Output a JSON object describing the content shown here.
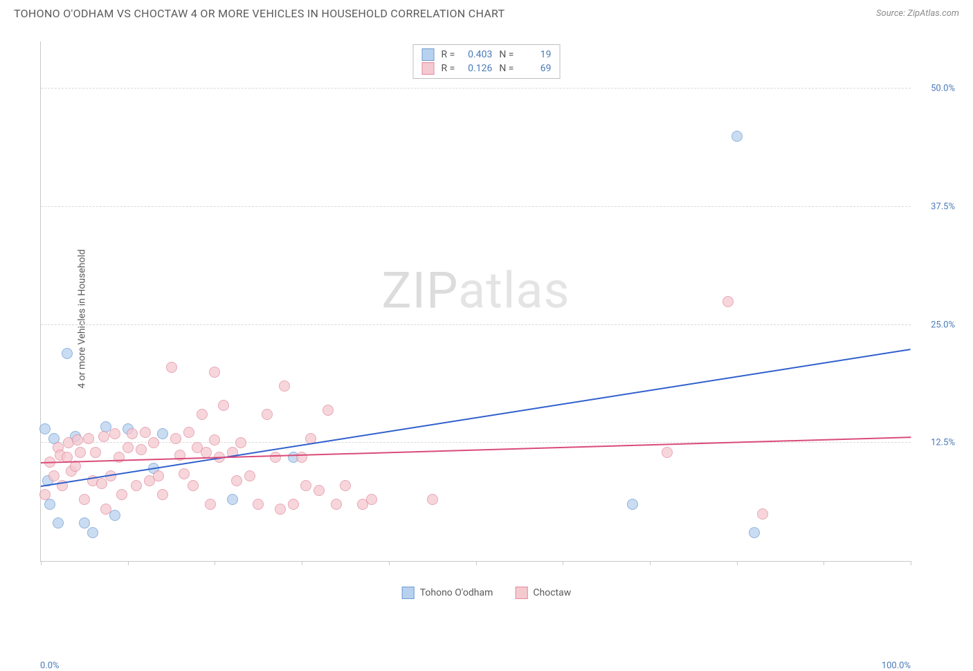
{
  "header": {
    "title": "TOHONO O'ODHAM VS CHOCTAW 4 OR MORE VEHICLES IN HOUSEHOLD CORRELATION CHART",
    "source": "Source: ZipAtlas.com"
  },
  "axes": {
    "y_label": "4 or more Vehicles in Household",
    "y_ticks": [
      {
        "value": 12.5,
        "label": "12.5%"
      },
      {
        "value": 25.0,
        "label": "25.0%"
      },
      {
        "value": 37.5,
        "label": "37.5%"
      },
      {
        "value": 50.0,
        "label": "50.0%"
      }
    ],
    "x_label_min": "0.0%",
    "x_label_max": "100.0%",
    "x_tick_positions": [
      0,
      10,
      20,
      30,
      40,
      50,
      60,
      70,
      80,
      90,
      100
    ],
    "xlim": [
      0,
      100
    ],
    "ylim": [
      0,
      55
    ]
  },
  "watermark": {
    "zip": "ZIP",
    "atlas": "atlas"
  },
  "series": [
    {
      "name": "Tohono O'odham",
      "short": "tohono",
      "fill": "#b8d1ee",
      "stroke": "#6c9bd1",
      "trend_color": "#2f5fcc",
      "marker_radius": 8,
      "R_label": "R =",
      "R": "0.403",
      "N_label": "N =",
      "N": "19",
      "trend": {
        "x1": 0,
        "y1": 8.0,
        "x2": 100,
        "y2": 22.5
      },
      "points": [
        {
          "x": 0.5,
          "y": 14.0
        },
        {
          "x": 0.8,
          "y": 8.5
        },
        {
          "x": 1.0,
          "y": 6.0
        },
        {
          "x": 1.5,
          "y": 13.0
        },
        {
          "x": 2.0,
          "y": 4.0
        },
        {
          "x": 3.0,
          "y": 22.0
        },
        {
          "x": 4.0,
          "y": 13.2
        },
        {
          "x": 5.0,
          "y": 4.0
        },
        {
          "x": 6.0,
          "y": 3.0
        },
        {
          "x": 7.5,
          "y": 14.2
        },
        {
          "x": 8.5,
          "y": 4.8
        },
        {
          "x": 10.0,
          "y": 14.0
        },
        {
          "x": 13.0,
          "y": 9.8
        },
        {
          "x": 14.0,
          "y": 13.5
        },
        {
          "x": 22.0,
          "y": 6.5
        },
        {
          "x": 29.0,
          "y": 11.0
        },
        {
          "x": 68.0,
          "y": 6.0
        },
        {
          "x": 80.0,
          "y": 45.0
        },
        {
          "x": 82.0,
          "y": 3.0
        }
      ]
    },
    {
      "name": "Choctaw",
      "short": "choctaw",
      "fill": "#f5c9d0",
      "stroke": "#e08a9e",
      "trend_color": "#d94b78",
      "marker_radius": 8,
      "R_label": "R =",
      "R": "0.126",
      "N_label": "N =",
      "N": "69",
      "trend": {
        "x1": 0,
        "y1": 10.5,
        "x2": 100,
        "y2": 13.2
      },
      "points": [
        {
          "x": 0.5,
          "y": 7.0
        },
        {
          "x": 1.0,
          "y": 10.5
        },
        {
          "x": 1.5,
          "y": 9.0
        },
        {
          "x": 2.0,
          "y": 12.0
        },
        {
          "x": 2.2,
          "y": 11.2
        },
        {
          "x": 2.5,
          "y": 8.0
        },
        {
          "x": 3.0,
          "y": 11.0
        },
        {
          "x": 3.2,
          "y": 12.5
        },
        {
          "x": 3.5,
          "y": 9.5
        },
        {
          "x": 4.0,
          "y": 10.0
        },
        {
          "x": 4.2,
          "y": 12.8
        },
        {
          "x": 4.5,
          "y": 11.5
        },
        {
          "x": 5.0,
          "y": 6.5
        },
        {
          "x": 5.5,
          "y": 13.0
        },
        {
          "x": 6.0,
          "y": 8.5
        },
        {
          "x": 6.3,
          "y": 11.5
        },
        {
          "x": 7.0,
          "y": 8.2
        },
        {
          "x": 7.2,
          "y": 13.2
        },
        {
          "x": 7.5,
          "y": 5.5
        },
        {
          "x": 8.0,
          "y": 9.0
        },
        {
          "x": 8.5,
          "y": 13.5
        },
        {
          "x": 9.0,
          "y": 11.0
        },
        {
          "x": 9.3,
          "y": 7.0
        },
        {
          "x": 10.0,
          "y": 12.0
        },
        {
          "x": 10.5,
          "y": 13.5
        },
        {
          "x": 11.0,
          "y": 8.0
        },
        {
          "x": 11.5,
          "y": 11.8
        },
        {
          "x": 12.0,
          "y": 13.6
        },
        {
          "x": 12.5,
          "y": 8.5
        },
        {
          "x": 13.0,
          "y": 12.5
        },
        {
          "x": 13.5,
          "y": 9.0
        },
        {
          "x": 14.0,
          "y": 7.0
        },
        {
          "x": 15.0,
          "y": 20.5
        },
        {
          "x": 15.5,
          "y": 13.0
        },
        {
          "x": 16.0,
          "y": 11.2
        },
        {
          "x": 16.5,
          "y": 9.2
        },
        {
          "x": 17.0,
          "y": 13.6
        },
        {
          "x": 17.5,
          "y": 8.0
        },
        {
          "x": 18.0,
          "y": 12.0
        },
        {
          "x": 18.5,
          "y": 15.5
        },
        {
          "x": 19.0,
          "y": 11.5
        },
        {
          "x": 19.5,
          "y": 6.0
        },
        {
          "x": 20.0,
          "y": 12.8
        },
        {
          "x": 20.0,
          "y": 20.0
        },
        {
          "x": 20.5,
          "y": 11.0
        },
        {
          "x": 21.0,
          "y": 16.5
        },
        {
          "x": 22.0,
          "y": 11.5
        },
        {
          "x": 22.5,
          "y": 8.5
        },
        {
          "x": 23.0,
          "y": 12.5
        },
        {
          "x": 24.0,
          "y": 9.0
        },
        {
          "x": 25.0,
          "y": 6.0
        },
        {
          "x": 26.0,
          "y": 15.5
        },
        {
          "x": 27.0,
          "y": 11.0
        },
        {
          "x": 27.5,
          "y": 5.5
        },
        {
          "x": 28.0,
          "y": 18.5
        },
        {
          "x": 29.0,
          "y": 6.0
        },
        {
          "x": 30.0,
          "y": 11.0
        },
        {
          "x": 30.5,
          "y": 8.0
        },
        {
          "x": 31.0,
          "y": 13.0
        },
        {
          "x": 32.0,
          "y": 7.5
        },
        {
          "x": 33.0,
          "y": 16.0
        },
        {
          "x": 34.0,
          "y": 6.0
        },
        {
          "x": 35.0,
          "y": 8.0
        },
        {
          "x": 37.0,
          "y": 6.0
        },
        {
          "x": 38.0,
          "y": 6.5
        },
        {
          "x": 45.0,
          "y": 6.5
        },
        {
          "x": 72.0,
          "y": 11.5
        },
        {
          "x": 79.0,
          "y": 27.5
        },
        {
          "x": 83.0,
          "y": 5.0
        }
      ]
    }
  ],
  "bottom_legend": [
    {
      "label": "Tohono O'odham",
      "fill": "#b8d1ee",
      "stroke": "#6c9bd1"
    },
    {
      "label": "Choctaw",
      "fill": "#f5c9d0",
      "stroke": "#e08a9e"
    }
  ],
  "styling": {
    "background_color": "#ffffff",
    "grid_color": "#d8d8d8",
    "axis_color": "#c8c8c8",
    "title_color": "#5a5a5a",
    "tick_label_color": "#4a7ab8",
    "title_fontsize": 16,
    "label_fontsize": 14,
    "tick_fontsize": 13,
    "watermark_fontsize": 72,
    "fill_opacity": 0.75,
    "trend_line_width": 2
  }
}
